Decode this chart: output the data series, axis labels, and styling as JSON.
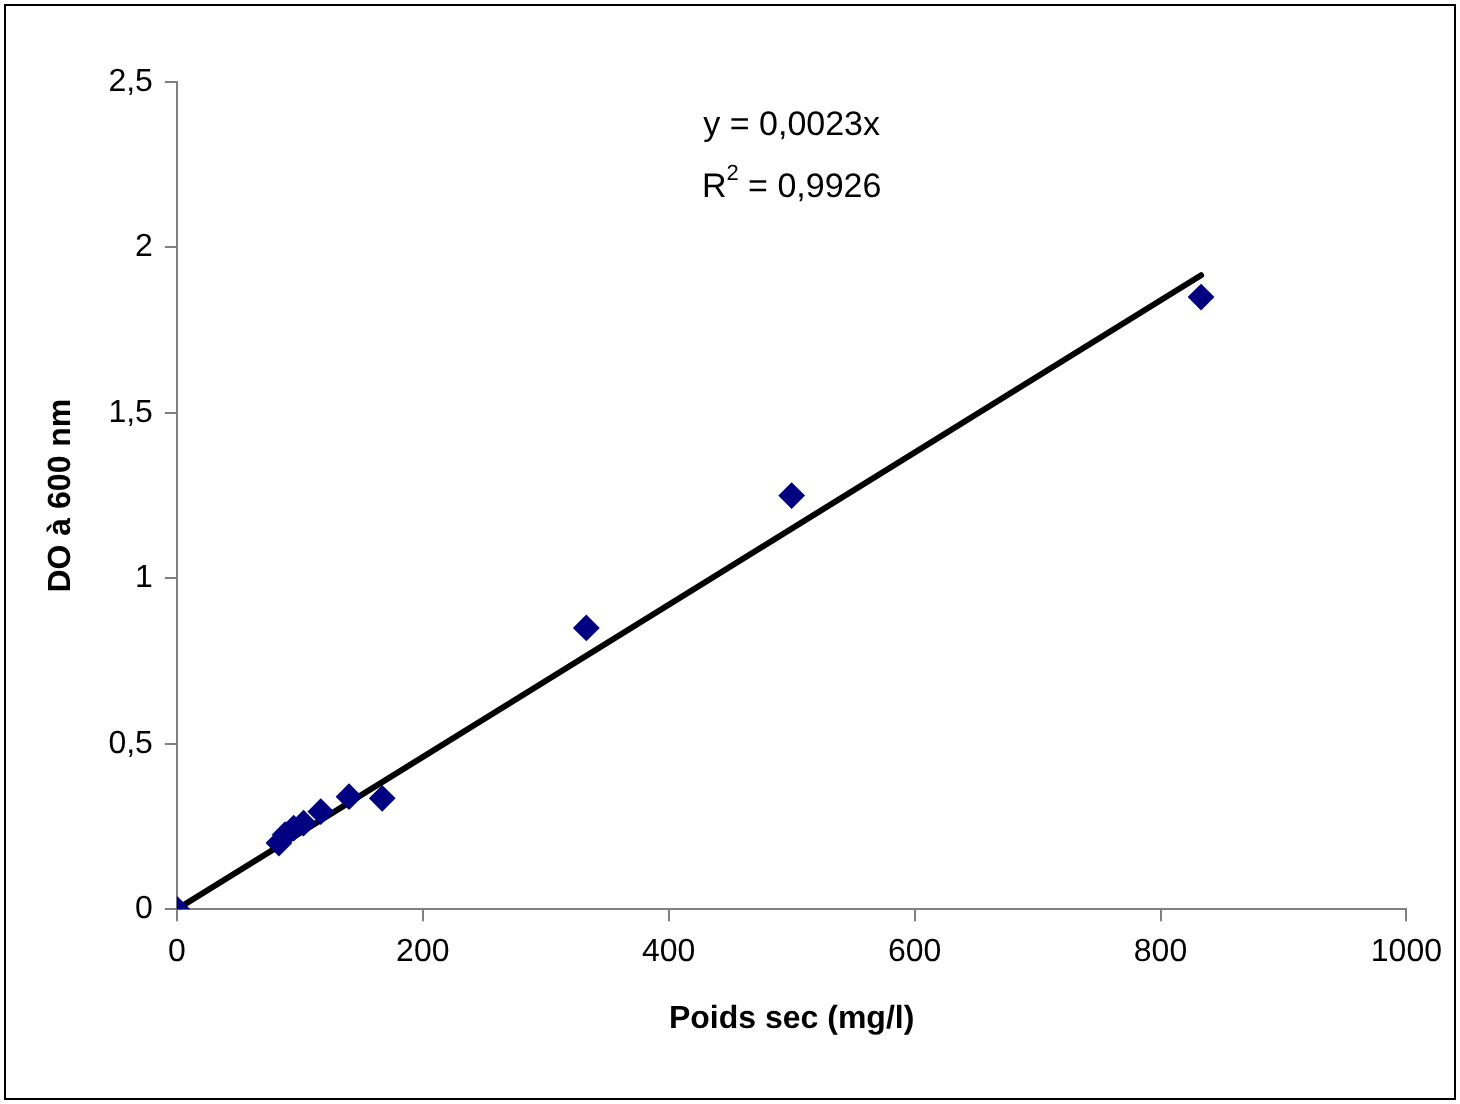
{
  "chart_data": {
    "type": "scatter",
    "xlabel": "Poids sec (mg/l)",
    "ylabel": "DO à 600 nm",
    "annotations": [
      "y = 0,0023x",
      "R$^{2}$ = 0,9926"
    ],
    "x": [
      0,
      83,
      88,
      95,
      103,
      117,
      140,
      167,
      333,
      500,
      833
    ],
    "series": [
      {
        "color": "#000080",
        "values": [
          0,
          0.2,
          0.225,
          0.245,
          0.26,
          0.295,
          0.34,
          0.335,
          0.85,
          1.25,
          1.85
        ],
        "marker": "diamond"
      },
      {
        "type": "line",
        "color": "#000000",
        "x": [
          0,
          833
        ],
        "values": [
          0,
          1.916
        ],
        "marker": "none"
      }
    ],
    "xlim": [
      0,
      1000
    ],
    "xticks": [
      0,
      200,
      400,
      600,
      800,
      1000
    ],
    "ylim": [
      0,
      2.5
    ],
    "yticks": [
      0,
      {
        "value": 0.5,
        "label": "0,5"
      },
      1,
      {
        "value": 1.5,
        "label": "1,5"
      },
      2,
      {
        "value": 2.5,
        "label": "2,5"
      }
    ],
    "grid": false,
    "legend": false
  }
}
